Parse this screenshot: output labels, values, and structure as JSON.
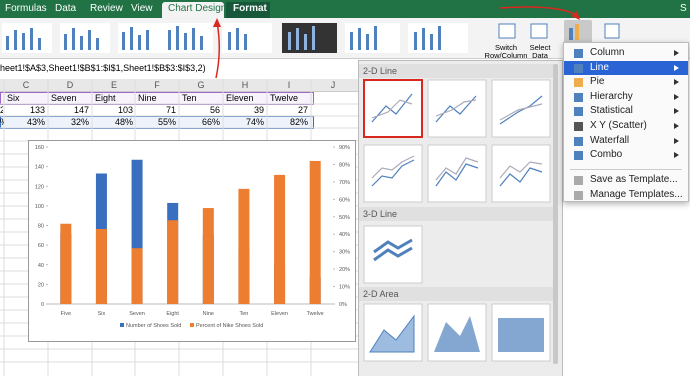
{
  "ribbon": {
    "tabs": [
      "Formulas",
      "Data",
      "Review",
      "View",
      "Chart Design",
      "Format"
    ],
    "right_text": "S",
    "buttons": [
      "Switch Row/Column",
      "Select Data"
    ]
  },
  "formula_bar": "heet1!$A$3,Sheet1!$B$1:$I$1,Sheet1!$B$3:$I$3,2)",
  "sheet": {
    "columns": [
      "C",
      "D",
      "E",
      "F",
      "G",
      "H",
      "I",
      "J"
    ],
    "row1": [
      "Six",
      "Seven",
      "Eight",
      "Nine",
      "Ten",
      "Eleven",
      "Twelve"
    ],
    "row2_partial": "2",
    "row2": [
      "133",
      "147",
      "103",
      "71",
      "56",
      "39",
      "27"
    ],
    "row3_partial": "%",
    "row3": [
      "43%",
      "32%",
      "48%",
      "55%",
      "66%",
      "74%",
      "82%"
    ]
  },
  "chart": {
    "type": "bar",
    "categories": [
      "Five",
      "Six",
      "Seven",
      "Eight",
      "Nine",
      "Ten",
      "Eleven",
      "Twelve"
    ],
    "series": [
      {
        "name": "Number of Shoes Sold",
        "color": "#3a6fbf",
        "values": [
          72,
          133,
          147,
          103,
          71,
          56,
          39,
          27
        ]
      },
      {
        "name": "Percent of Nike Shoes Sold",
        "color": "#ed7d31",
        "axis": "y2",
        "values": [
          46,
          43,
          32,
          48,
          55,
          66,
          74,
          82
        ]
      }
    ],
    "ylim": [
      0,
      160
    ],
    "yticks": [
      0,
      20,
      40,
      60,
      80,
      100,
      120,
      140,
      160
    ],
    "y2lim": [
      0,
      90
    ],
    "y2ticks": [
      {
        "value": 0,
        "label": "0%"
      },
      {
        "value": 10,
        "label": "10%"
      },
      {
        "value": 20,
        "label": "20%"
      },
      {
        "value": 30,
        "label": "30%"
      },
      {
        "value": 40,
        "label": "40%"
      },
      {
        "value": 50,
        "label": "50%"
      },
      {
        "value": 60,
        "label": "60%"
      },
      {
        "value": 70,
        "label": "70%"
      },
      {
        "value": 80,
        "label": "80%"
      },
      {
        "value": 90,
        "label": "90%"
      }
    ]
  },
  "chart_panel": {
    "sections": [
      "2-D Line",
      "3-D Line",
      "2-D Area"
    ]
  },
  "menu": {
    "items": [
      "Column",
      "Line",
      "Pie",
      "Hierarchy",
      "Statistical",
      "X Y (Scatter)",
      "Waterfall",
      "Combo"
    ],
    "actions": [
      "Save as Template...",
      "Manage Templates..."
    ]
  }
}
